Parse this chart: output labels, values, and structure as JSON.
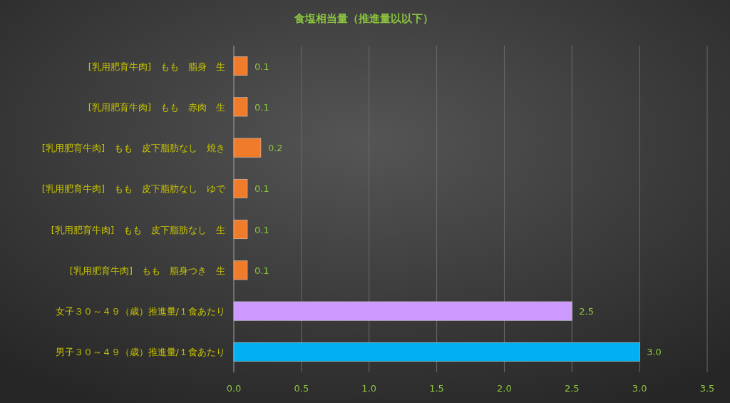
{
  "chart_data": {
    "type": "bar",
    "orientation": "horizontal",
    "title": "食塩相当量（推進量以以下）",
    "categories": [
      "[乳用肥育牛肉]　もも　脂身　生",
      "[乳用肥育牛肉]　もも　赤肉　生",
      "[乳用肥育牛肉]　もも　皮下脂肪なし　焼き",
      "[乳用肥育牛肉]　もも　皮下脂肪なし　ゆで",
      "[乳用肥育牛肉]　もも　皮下脂肪なし　生",
      "[乳用肥育牛肉]　もも　脂身つき　生",
      "女子３０～４９（歳）推進量/１食あたり",
      "男子３０～４９（歳）推進量/１食あたり"
    ],
    "values": [
      0.1,
      0.1,
      0.2,
      0.1,
      0.1,
      0.1,
      2.5,
      3.0
    ],
    "value_labels": [
      "0.1",
      "0.1",
      "0.2",
      "0.1",
      "0.1",
      "0.1",
      "2.5",
      "3.0"
    ],
    "colors": [
      "#f07b2b",
      "#f07b2b",
      "#f07b2b",
      "#f07b2b",
      "#f07b2b",
      "#f07b2b",
      "#cc99ff",
      "#00b0f0"
    ],
    "xlim": [
      0,
      3.5
    ],
    "xticks": [
      {
        "value": 0,
        "label": "0.0"
      },
      {
        "value": 0.5,
        "label": "0.5"
      },
      {
        "value": 1,
        "label": "1.0"
      },
      {
        "value": 1.5,
        "label": "1.5"
      },
      {
        "value": 2,
        "label": "2.0"
      },
      {
        "value": 2.5,
        "label": "2.5"
      },
      {
        "value": 3,
        "label": "3.0"
      },
      {
        "value": 3.5,
        "label": "3.5"
      }
    ],
    "grid": "x"
  }
}
